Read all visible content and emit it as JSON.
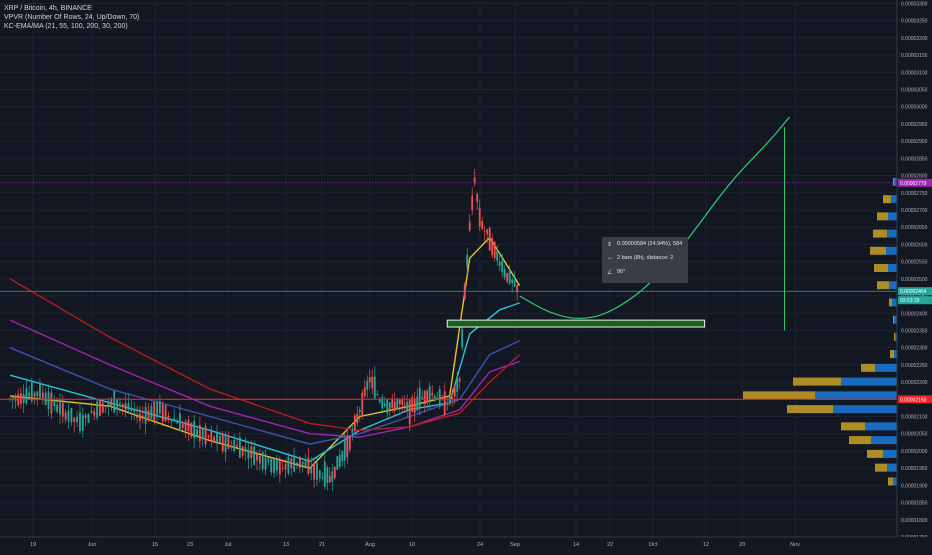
{
  "legend": {
    "title": "XRP / Bitcoin, 4h, BINANCE",
    "indicator1": "VPVR (Number Of Rows, 24, Up/Down, 70)",
    "indicator2": "KC-EMA/MA (21, 55, 100, 200, 30, 200)"
  },
  "measure_tooltip": {
    "price_change": "0.00000584 (24.94%), 584",
    "bars": "2 bars (8h), distance: 2",
    "angle": "90°"
  },
  "price_labels": {
    "purple": "0.00002779",
    "green": "0.00002464",
    "green_timer": "03:53:29",
    "red": "0.00002150"
  },
  "colors": {
    "background": "#131722",
    "candle_up": "#26a69a",
    "candle_down": "#ef5350",
    "red_line": "#e8232a",
    "purple_line": "#9c27b0",
    "green_label": "#26a69a",
    "zone": "#1b5e20",
    "projection": "#2ecc71",
    "vp_up": "#1976d2",
    "vp_down": "#c9a227"
  },
  "chart_data": {
    "type": "candlestick",
    "symbol": "XRP / Bitcoin",
    "interval": "4h",
    "exchange": "BINANCE",
    "y_ticks": [
      "0.00003300",
      "0.00003250",
      "0.00003200",
      "0.00003150",
      "0.00003100",
      "0.00003050",
      "0.00003000",
      "0.00002950",
      "0.00002900",
      "0.00002850",
      "0.00002800",
      "0.00002750",
      "0.00002700",
      "0.00002650",
      "0.00002600",
      "0.00002550",
      "0.00002500",
      "0.00002450",
      "0.00002400",
      "0.00002350",
      "0.00002300",
      "0.00002250",
      "0.00002200",
      "0.00002150",
      "0.00002100",
      "0.00002050",
      "0.00002000",
      "0.00001950",
      "0.00001900",
      "0.00001850",
      "0.00001800",
      "0.00001750"
    ],
    "ylim": [
      1.75e-05,
      3.31e-05
    ],
    "x_ticks": [
      "19",
      "Jun",
      "15",
      "23",
      "Jul",
      "13",
      "21",
      "Aug",
      "10",
      "24",
      "Sep",
      "14",
      "22",
      "Oct",
      "12",
      "20",
      "Nov"
    ],
    "horizontal_lines": [
      {
        "price": 2.779e-05,
        "style": "dotted",
        "color": "purple"
      },
      {
        "price": 2.464e-05,
        "style": "solid",
        "color": "green"
      },
      {
        "price": 2.15e-05,
        "style": "solid",
        "color": "red"
      }
    ],
    "zone": {
      "low": 2.36e-05,
      "high": 2.38e-05
    },
    "price_path": [
      [
        0,
        2.15e-05
      ],
      [
        6,
        2.17e-05
      ],
      [
        10,
        2.12e-05
      ],
      [
        14,
        2.08e-05
      ],
      [
        18,
        2.13e-05
      ],
      [
        22,
        2.14e-05
      ],
      [
        26,
        2.1e-05
      ],
      [
        30,
        2.12e-05
      ],
      [
        34,
        2.08e-05
      ],
      [
        38,
        2.05e-05
      ],
      [
        42,
        2.03e-05
      ],
      [
        46,
        2.01e-05
      ],
      [
        50,
        1.98e-05
      ],
      [
        54,
        1.95e-05
      ],
      [
        58,
        1.97e-05
      ],
      [
        62,
        1.93e-05
      ],
      [
        64,
        1.92e-05
      ],
      [
        66,
        1.97e-05
      ],
      [
        68,
        2.03e-05
      ],
      [
        70,
        2.12e-05
      ],
      [
        72,
        2.21e-05
      ],
      [
        74,
        2.15e-05
      ],
      [
        76,
        2.13e-05
      ],
      [
        78,
        2.14e-05
      ],
      [
        80,
        2.12e-05
      ],
      [
        82,
        2.15e-05
      ],
      [
        84,
        2.17e-05
      ],
      [
        86,
        2.15e-05
      ],
      [
        88,
        2.14e-05
      ],
      [
        90,
        2.2e-05
      ],
      [
        91,
        2.46e-05
      ],
      [
        92,
        2.65e-05
      ],
      [
        93,
        2.79e-05
      ],
      [
        94,
        2.68e-05
      ],
      [
        95,
        2.64e-05
      ],
      [
        96,
        2.62e-05
      ],
      [
        97,
        2.58e-05
      ],
      [
        98,
        2.55e-05
      ],
      [
        99,
        2.52e-05
      ],
      [
        100,
        2.5e-05
      ],
      [
        101,
        2.48e-05
      ],
      [
        102,
        2.46e-05
      ]
    ],
    "ma_lines": [
      {
        "color": "#e8c42a",
        "values": [
          [
            0,
            2.16e-05
          ],
          [
            20,
            2.13e-05
          ],
          [
            40,
            2.03e-05
          ],
          [
            60,
            1.95e-05
          ],
          [
            70,
            2.1e-05
          ],
          [
            80,
            2.13e-05
          ],
          [
            88,
            2.16e-05
          ],
          [
            92,
            2.56e-05
          ],
          [
            96,
            2.62e-05
          ],
          [
            102,
            2.48e-05
          ]
        ]
      },
      {
        "color": "#26c6da",
        "values": [
          [
            0,
            2.22e-05
          ],
          [
            20,
            2.14e-05
          ],
          [
            40,
            2.06e-05
          ],
          [
            60,
            1.97e-05
          ],
          [
            70,
            2.06e-05
          ],
          [
            80,
            2.12e-05
          ],
          [
            88,
            2.14e-05
          ],
          [
            92,
            2.34e-05
          ],
          [
            98,
            2.41e-05
          ],
          [
            102,
            2.43e-05
          ]
        ]
      },
      {
        "color": "#3f51b5",
        "values": [
          [
            0,
            2.3e-05
          ],
          [
            20,
            2.18e-05
          ],
          [
            40,
            2.1e-05
          ],
          [
            60,
            2.02e-05
          ],
          [
            70,
            2.05e-05
          ],
          [
            80,
            2.1e-05
          ],
          [
            90,
            2.15e-05
          ],
          [
            96,
            2.28e-05
          ],
          [
            102,
            2.32e-05
          ]
        ]
      },
      {
        "color": "#9c27b0",
        "values": [
          [
            0,
            2.38e-05
          ],
          [
            20,
            2.25e-05
          ],
          [
            40,
            2.13e-05
          ],
          [
            60,
            2.05e-05
          ],
          [
            70,
            2.04e-05
          ],
          [
            80,
            2.07e-05
          ],
          [
            90,
            2.12e-05
          ],
          [
            96,
            2.23e-05
          ],
          [
            102,
            2.26e-05
          ]
        ]
      },
      {
        "color": "#b71c1c",
        "values": [
          [
            0,
            2.5e-05
          ],
          [
            20,
            2.33e-05
          ],
          [
            40,
            2.18e-05
          ],
          [
            60,
            2.08e-05
          ],
          [
            70,
            2.06e-05
          ],
          [
            80,
            2.07e-05
          ],
          [
            90,
            2.11e-05
          ],
          [
            96,
            2.2e-05
          ],
          [
            102,
            2.28e-05
          ]
        ]
      }
    ],
    "projection_path": [
      [
        102,
        2.45e-05
      ],
      [
        108,
        2.4e-05
      ],
      [
        114,
        2.38e-05
      ],
      [
        120,
        2.4e-05
      ],
      [
        128,
        2.48e-05
      ],
      [
        136,
        2.62e-05
      ],
      [
        144,
        2.78e-05
      ],
      [
        152,
        2.9e-05
      ],
      [
        156,
        2.97e-05
      ]
    ],
    "volume_profile": [
      {
        "price": 2.78e-05,
        "up": 3,
        "down": 1
      },
      {
        "price": 2.73e-05,
        "up": 6,
        "down": 8
      },
      {
        "price": 2.68e-05,
        "up": 9,
        "down": 11
      },
      {
        "price": 2.63e-05,
        "up": 10,
        "down": 14
      },
      {
        "price": 2.58e-05,
        "up": 11,
        "down": 16
      },
      {
        "price": 2.53e-05,
        "up": 9,
        "down": 14
      },
      {
        "price": 2.48e-05,
        "up": 8,
        "down": 12
      },
      {
        "price": 2.43e-05,
        "up": 5,
        "down": 3
      },
      {
        "price": 2.38e-05,
        "up": 3,
        "down": 1
      },
      {
        "price": 2.33e-05,
        "up": 2,
        "down": 1
      },
      {
        "price": 2.28e-05,
        "up": 3,
        "down": 4
      },
      {
        "price": 2.24e-05,
        "up": 22,
        "down": 14
      },
      {
        "price": 2.2e-05,
        "up": 56,
        "down": 48
      },
      {
        "price": 2.16e-05,
        "up": 82,
        "down": 72
      },
      {
        "price": 2.12e-05,
        "up": 64,
        "down": 46
      },
      {
        "price": 2.07e-05,
        "up": 32,
        "down": 24
      },
      {
        "price": 2.03e-05,
        "up": 26,
        "down": 22
      },
      {
        "price": 1.99e-05,
        "up": 14,
        "down": 16
      },
      {
        "price": 1.95e-05,
        "up": 10,
        "down": 12
      },
      {
        "price": 1.91e-05,
        "up": 4,
        "down": 5
      }
    ]
  }
}
